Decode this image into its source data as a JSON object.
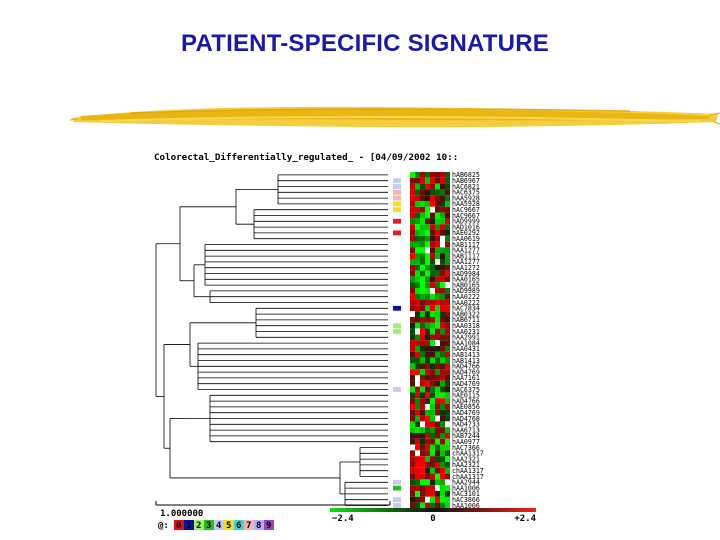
{
  "slide": {
    "title": "PATIENT-SPECIFIC SIGNATURE"
  },
  "figure": {
    "title": "Colorectal_Differentially_regulated_ - [04/09/2002 10::",
    "gene_labels": [
      "hAB6825",
      "hAB6967",
      "hAC6821",
      "hAC6375",
      "hAA5928",
      "hAA5928",
      "hAC9667",
      "hAC9667",
      "hAD9999",
      "hAD1016",
      "hAE0292",
      "hAA0619",
      "hAB1117",
      "hAA1277",
      "hAB1117",
      "hAA1277",
      "hAA1272",
      "hAD9984",
      "hAA0165",
      "hAB0165",
      "hAD9989",
      "hAA0222",
      "hAA0222",
      "hAC7834",
      "hAB0322",
      "hAB6711",
      "hAA0318",
      "hAA0231",
      "hAA2991",
      "hAA1084",
      "hAA0431",
      "hAB1413",
      "hAB1413",
      "hAD4766",
      "hAD4769",
      "hAA7161",
      "hAD4769",
      "hAC6375",
      "hAE0115",
      "hAD4766",
      "hAE0856",
      "hAD4769",
      "hAD4768",
      "hAD4733",
      "hAA6713",
      "hAB7244",
      "hAA0977",
      "hAC7366",
      "chAA1317",
      "hAA2321",
      "hAA2321",
      "chAA1317",
      "chAA1317",
      "hAA2944",
      "hAA1006",
      "hAC3101",
      "hAC3866",
      "hAA1006"
    ],
    "scale_label": "1.000000",
    "palette_prefix": "@:",
    "palette_digits": [
      "0",
      "1",
      "2",
      "3",
      "4",
      "5",
      "6",
      "7",
      "8",
      "9"
    ],
    "colorbar": {
      "min_label": "−2.4",
      "mid_label": "0",
      "max_label": "+2.4"
    },
    "colors": {
      "title": "#1a1aa6",
      "brush": "#f0c419",
      "up": "#e01010",
      "down": "#10c010"
    }
  }
}
